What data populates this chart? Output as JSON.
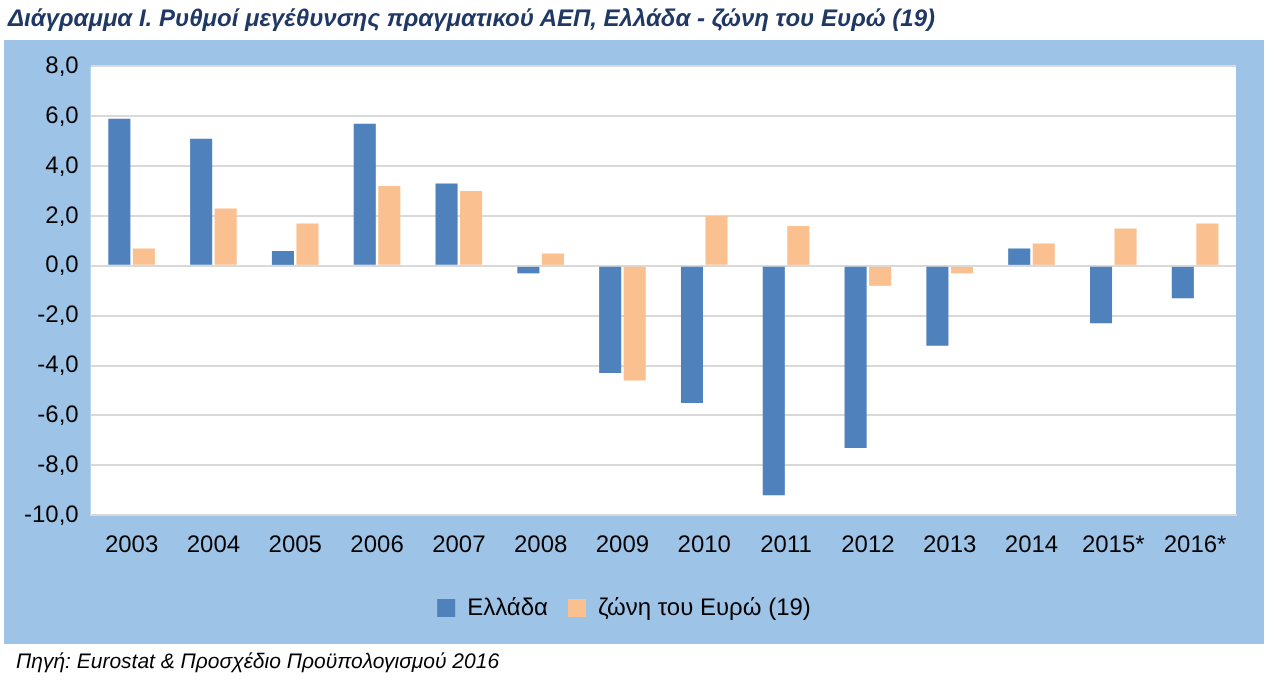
{
  "chart_data": {
    "type": "bar",
    "title": "Διάγραμμα Ι. Ρυθμοί μεγέθυνσης πραγματικού ΑΕΠ, Ελλάδα - ζώνη του Ευρώ (19)",
    "categories": [
      "2003",
      "2004",
      "2005",
      "2006",
      "2007",
      "2008",
      "2009",
      "2010",
      "2011",
      "2012",
      "2013",
      "2014",
      "2015*",
      "2016*"
    ],
    "series": [
      {
        "name": "Ελλάδα",
        "color": "#4f81bd",
        "values": [
          5.9,
          5.1,
          0.6,
          5.7,
          3.3,
          -0.3,
          -4.3,
          -5.5,
          -9.2,
          -7.3,
          -3.2,
          0.7,
          -2.3,
          -1.3
        ]
      },
      {
        "name": "ζώνη του Ευρώ (19)",
        "color": "#fac090",
        "values": [
          0.7,
          2.3,
          1.7,
          3.2,
          3.0,
          0.5,
          -4.6,
          2.0,
          1.6,
          -0.8,
          -0.3,
          0.9,
          1.5,
          1.7
        ]
      }
    ],
    "ylim": [
      -10,
      8
    ],
    "yticks": [
      {
        "value": -10,
        "label": "-10,0"
      },
      {
        "value": -8,
        "label": "-8,0"
      },
      {
        "value": -6,
        "label": "-6,0"
      },
      {
        "value": -4,
        "label": "-4,0"
      },
      {
        "value": -2,
        "label": "-2,0"
      },
      {
        "value": 0,
        "label": "0,0"
      },
      {
        "value": 2,
        "label": "2,0"
      },
      {
        "value": 4,
        "label": "4,0"
      },
      {
        "value": 6,
        "label": "6,0"
      },
      {
        "value": 8,
        "label": "8,0"
      }
    ],
    "grid": "y",
    "legend": "bottom",
    "annotations": [
      "Πηγή: Eurostat & Προσχέδιο Προϋπολογισμού 2016"
    ]
  }
}
